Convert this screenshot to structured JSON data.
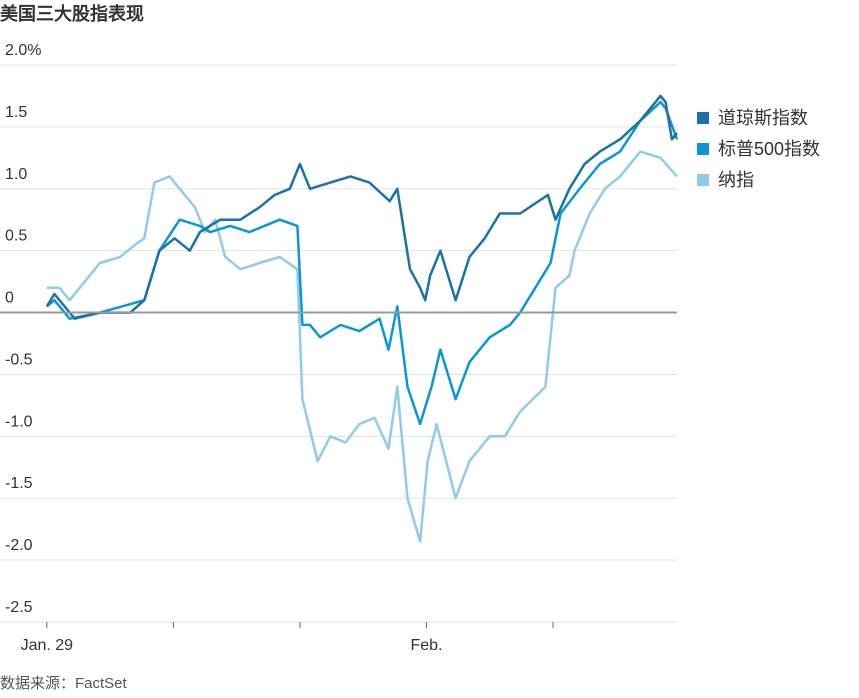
{
  "chart_data": {
    "type": "line",
    "title": "美国三大股指表现",
    "source": "数据来源：FactSet",
    "xlim": [
      -0.37,
      4.98
    ],
    "xticks": [
      {
        "value": 0,
        "label": "Jan. 29"
      },
      {
        "value": 1
      },
      {
        "value": 2
      },
      {
        "value": 3,
        "label": "Feb."
      },
      {
        "value": 4
      }
    ],
    "ylim": [
      -2.5,
      2.0
    ],
    "yticks": [
      {
        "value": 2,
        "label": "2.0%"
      },
      1.5,
      {
        "value": 1,
        "label": "1.0"
      },
      0.5,
      0,
      -0.5,
      {
        "value": -1,
        "label": "-1.0"
      },
      -1.5,
      {
        "value": -2,
        "label": "-2.0"
      },
      -2.5
    ],
    "grid": true,
    "legend": "right",
    "series": [
      {
        "name": "道琼斯指数",
        "color": "#1a72a8",
        "x": [
          0,
          0.06,
          0.22,
          0.42,
          0.66,
          0.77,
          0.89,
          1.01,
          1.13,
          1.21,
          1.37,
          1.53,
          1.68,
          1.8,
          1.92,
          2.0,
          2.08,
          2.24,
          2.4,
          2.55,
          2.71,
          2.77,
          2.87,
          2.95,
          2.99,
          3.03,
          3.11,
          3.23,
          3.34,
          3.46,
          3.58,
          3.74,
          3.96,
          4.02,
          4.13,
          4.25,
          4.37,
          4.53,
          4.69,
          4.85,
          4.89,
          4.94,
          4.98
        ],
        "values": [
          0.05,
          0.15,
          -0.05,
          0,
          0,
          0.1,
          0.5,
          0.6,
          0.5,
          0.65,
          0.75,
          0.75,
          0.85,
          0.95,
          1.0,
          1.2,
          1.0,
          1.05,
          1.1,
          1.05,
          0.9,
          1.0,
          0.35,
          0.2,
          0.1,
          0.3,
          0.5,
          0.1,
          0.45,
          0.6,
          0.8,
          0.8,
          0.95,
          0.75,
          1.0,
          1.2,
          1.3,
          1.4,
          1.55,
          1.75,
          1.7,
          1.4,
          1.45
        ]
      },
      {
        "name": "标普500指数",
        "color": "#0c96d6",
        "x": [
          0,
          0.06,
          0.18,
          0.42,
          0.77,
          0.89,
          1.05,
          1.21,
          1.29,
          1.45,
          1.6,
          1.84,
          1.98,
          2.02,
          2.08,
          2.16,
          2.32,
          2.47,
          2.63,
          2.7,
          2.77,
          2.85,
          2.95,
          3.04,
          3.11,
          3.23,
          3.34,
          3.5,
          3.66,
          3.74,
          3.86,
          3.98,
          4.06,
          4.21,
          4.37,
          4.53,
          4.69,
          4.85,
          4.89,
          4.98
        ],
        "values": [
          0.05,
          0.1,
          -0.05,
          0,
          0.1,
          0.5,
          0.75,
          0.7,
          0.65,
          0.7,
          0.65,
          0.75,
          0.7,
          -0.1,
          -0.1,
          -0.2,
          -0.1,
          -0.15,
          -0.05,
          -0.3,
          0.05,
          -0.6,
          -0.9,
          -0.6,
          -0.3,
          -0.7,
          -0.4,
          -0.2,
          -0.1,
          0,
          0.2,
          0.4,
          0.8,
          1.0,
          1.2,
          1.3,
          1.55,
          1.7,
          1.65,
          1.4
        ]
      },
      {
        "name": "纳指",
        "color": "#92cbea",
        "x": [
          0,
          0.1,
          0.18,
          0.3,
          0.42,
          0.58,
          0.7,
          0.77,
          0.85,
          0.97,
          1.05,
          1.17,
          1.25,
          1.33,
          1.41,
          1.53,
          1.68,
          1.84,
          1.98,
          2.02,
          2.14,
          2.24,
          2.36,
          2.47,
          2.59,
          2.7,
          2.77,
          2.85,
          2.95,
          3.01,
          3.08,
          3.23,
          3.34,
          3.5,
          3.62,
          3.74,
          3.94,
          4.02,
          4.13,
          4.17,
          4.29,
          4.41,
          4.53,
          4.69,
          4.85,
          4.98
        ],
        "values": [
          0.2,
          0.2,
          0.1,
          0.25,
          0.4,
          0.45,
          0.55,
          0.6,
          1.05,
          1.1,
          1.0,
          0.85,
          0.65,
          0.75,
          0.45,
          0.35,
          0.4,
          0.45,
          0.35,
          -0.7,
          -1.2,
          -1.0,
          -1.05,
          -0.9,
          -0.85,
          -1.1,
          -0.6,
          -1.5,
          -1.85,
          -1.2,
          -0.9,
          -1.5,
          -1.2,
          -1.0,
          -1.0,
          -0.8,
          -0.6,
          0.2,
          0.3,
          0.5,
          0.8,
          1.0,
          1.1,
          1.3,
          1.25,
          1.1
        ]
      }
    ]
  }
}
